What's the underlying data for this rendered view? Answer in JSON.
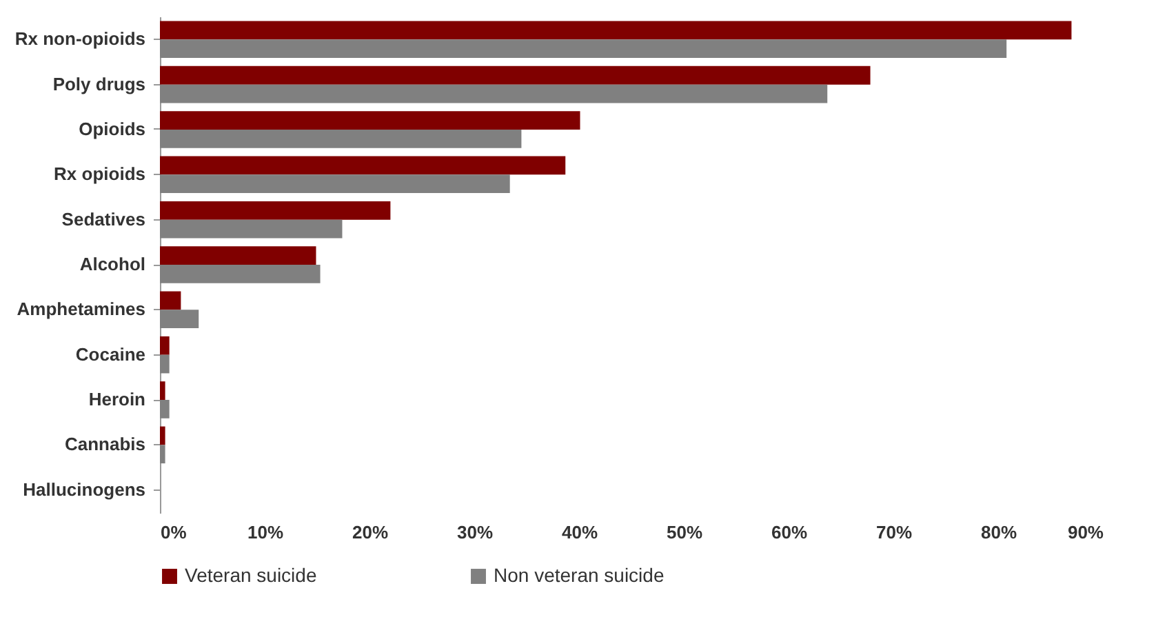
{
  "chart_data": {
    "type": "bar",
    "orientation": "horizontal",
    "categories": [
      "Rx non-opioids",
      "Poly drugs",
      "Opioids",
      "Rx opioids",
      "Sedatives",
      "Alcohol",
      "Amphetamines",
      "Cocaine",
      "Heroin",
      "Cannabis",
      "Hallucinogens"
    ],
    "series": [
      {
        "name": "Veteran suicide",
        "color": "#800000",
        "values": [
          87,
          67.8,
          40.1,
          38.7,
          22,
          14.9,
          2,
          0.9,
          0.5,
          0.5,
          0
        ]
      },
      {
        "name": "Non  veteran suicide",
        "color": "#808080",
        "values": [
          80.8,
          63.7,
          34.5,
          33.4,
          17.4,
          15.3,
          3.7,
          0.9,
          0.9,
          0.5,
          0
        ]
      }
    ],
    "xlim": [
      0,
      90
    ],
    "xticks": [
      {
        "value": 0,
        "label": "0%"
      },
      {
        "value": 10,
        "label": "10%"
      },
      {
        "value": 20,
        "label": "20%"
      },
      {
        "value": 30,
        "label": "30%"
      },
      {
        "value": 40,
        "label": "40%"
      },
      {
        "value": 50,
        "label": "50%"
      },
      {
        "value": 60,
        "label": "60%"
      },
      {
        "value": 70,
        "label": "70%"
      },
      {
        "value": 80,
        "label": "80%"
      },
      {
        "value": 90,
        "label": "90%"
      }
    ],
    "grid": false,
    "legend": "bottom"
  }
}
